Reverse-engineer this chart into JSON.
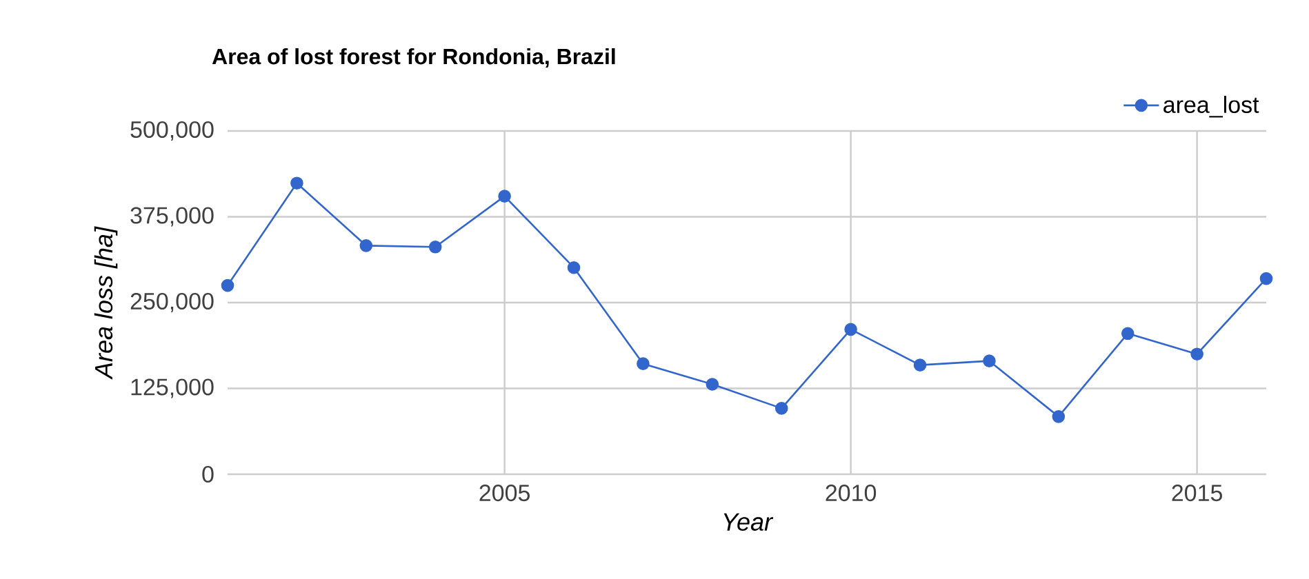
{
  "chart_data": {
    "type": "line",
    "title": "Area of lost forest for Rondonia, Brazil",
    "xlabel": "Year",
    "ylabel": "Area loss [ha]",
    "x": [
      2001,
      2002,
      2003,
      2004,
      2005,
      2006,
      2007,
      2008,
      2009,
      2010,
      2011,
      2012,
      2013,
      2014,
      2015,
      2016
    ],
    "series": [
      {
        "name": "area_lost",
        "color": "#3366cc",
        "values": [
          275000,
          424000,
          333000,
          331000,
          405000,
          301000,
          161000,
          131000,
          96000,
          211000,
          159000,
          165000,
          84000,
          205000,
          175000,
          285000
        ]
      }
    ],
    "xlim": [
      2001,
      2016
    ],
    "xticks": [
      2005,
      2010,
      2015
    ],
    "ylim": [
      0,
      500000
    ],
    "yticks": [
      {
        "value": 0,
        "label": "0"
      },
      {
        "value": 125000,
        "label": "125,000"
      },
      {
        "value": 250000,
        "label": "250,000"
      },
      {
        "value": 375000,
        "label": "375,000"
      },
      {
        "value": 500000,
        "label": "500,000"
      }
    ],
    "grid": true,
    "legend": "top right",
    "marker": "circle",
    "line_style": "solid"
  }
}
